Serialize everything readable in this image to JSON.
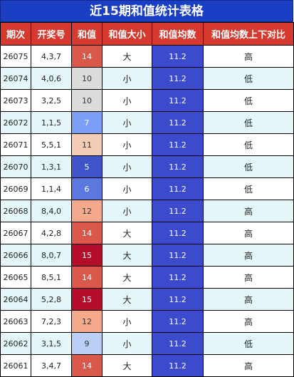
{
  "title": "近15期和值统计表格",
  "headers": [
    "期次",
    "开奖号",
    "和值",
    "和值大小",
    "和值均数",
    "和值均数上下对比"
  ],
  "rows": [
    {
      "period": "26075",
      "numbers": "4,3,7",
      "sum": "14",
      "size": "大",
      "avg": "11.2",
      "trend": "高",
      "sum_color": "#d9584a",
      "sum_text_color": "#ffffff"
    },
    {
      "period": "26074",
      "numbers": "4,0,6",
      "sum": "10",
      "size": "小",
      "avg": "11.2",
      "trend": "低",
      "sum_color": "#dcdcdc",
      "sum_text_color": "#333333"
    },
    {
      "period": "26073",
      "numbers": "3,2,5",
      "sum": "10",
      "size": "小",
      "avg": "11.2",
      "trend": "低",
      "sum_color": "#dcdcdc",
      "sum_text_color": "#333333"
    },
    {
      "period": "26072",
      "numbers": "1,1,5",
      "sum": "7",
      "size": "小",
      "avg": "11.2",
      "trend": "低",
      "sum_color": "#7d9ef5",
      "sum_text_color": "#ffffff"
    },
    {
      "period": "26071",
      "numbers": "5,5,1",
      "sum": "11",
      "size": "小",
      "avg": "11.2",
      "trend": "低",
      "sum_color": "#f3cdb6",
      "sum_text_color": "#333333"
    },
    {
      "period": "26070",
      "numbers": "1,3,1",
      "sum": "5",
      "size": "小",
      "avg": "11.2",
      "trend": "低",
      "sum_color": "#3f54c8",
      "sum_text_color": "#ffffff"
    },
    {
      "period": "26069",
      "numbers": "1,1,4",
      "sum": "6",
      "size": "小",
      "avg": "11.2",
      "trend": "低",
      "sum_color": "#5a78e0",
      "sum_text_color": "#ffffff"
    },
    {
      "period": "26068",
      "numbers": "8,4,0",
      "sum": "12",
      "size": "小",
      "avg": "11.2",
      "trend": "高",
      "sum_color": "#f4a98a",
      "sum_text_color": "#333333"
    },
    {
      "period": "26067",
      "numbers": "4,2,8",
      "sum": "14",
      "size": "大",
      "avg": "11.2",
      "trend": "高",
      "sum_color": "#d9584a",
      "sum_text_color": "#ffffff"
    },
    {
      "period": "26066",
      "numbers": "8,0,7",
      "sum": "15",
      "size": "大",
      "avg": "11.2",
      "trend": "高",
      "sum_color": "#b40d2a",
      "sum_text_color": "#ffffff"
    },
    {
      "period": "26065",
      "numbers": "8,5,1",
      "sum": "14",
      "size": "大",
      "avg": "11.2",
      "trend": "高",
      "sum_color": "#d9584a",
      "sum_text_color": "#ffffff"
    },
    {
      "period": "26064",
      "numbers": "5,2,8",
      "sum": "15",
      "size": "大",
      "avg": "11.2",
      "trend": "高",
      "sum_color": "#b40d2a",
      "sum_text_color": "#ffffff"
    },
    {
      "period": "26063",
      "numbers": "7,2,3",
      "sum": "12",
      "size": "小",
      "avg": "11.2",
      "trend": "高",
      "sum_color": "#f4a98a",
      "sum_text_color": "#333333"
    },
    {
      "period": "26062",
      "numbers": "3,1,5",
      "sum": "9",
      "size": "小",
      "avg": "11.2",
      "trend": "低",
      "sum_color": "#b9cff6",
      "sum_text_color": "#333333"
    },
    {
      "period": "26061",
      "numbers": "3,4,7",
      "sum": "14",
      "size": "大",
      "avg": "11.2",
      "trend": "高",
      "sum_color": "#d9584a",
      "sum_text_color": "#ffffff"
    }
  ]
}
